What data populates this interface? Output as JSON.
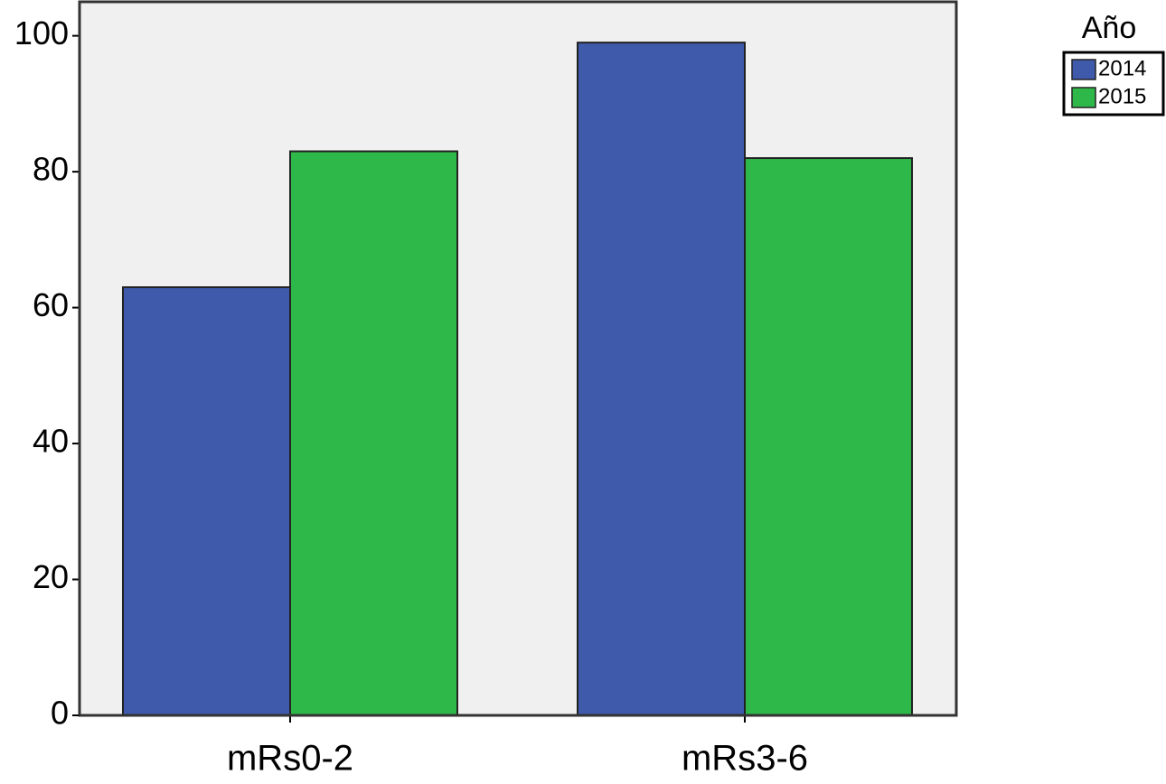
{
  "chart_data": {
    "type": "bar",
    "categories": [
      "mRs0-2",
      "mRs3-6"
    ],
    "series": [
      {
        "name": "2014",
        "color": "#3f59ab",
        "values": [
          63,
          99
        ]
      },
      {
        "name": "2015",
        "color": "#2fb84a",
        "values": [
          83,
          82
        ]
      }
    ],
    "legend_title": "Año",
    "ylim": [
      0,
      105
    ],
    "yticks": [
      0,
      20,
      40,
      60,
      80,
      100
    ],
    "grid": false,
    "legend": "right"
  }
}
